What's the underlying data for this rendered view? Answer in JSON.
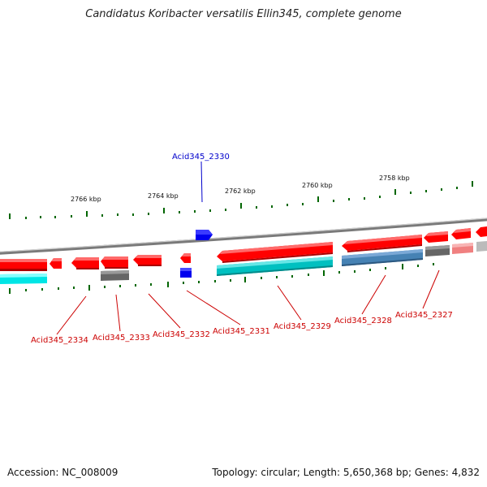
{
  "title": "Candidatus Koribacter versatilis Ellin345, complete genome",
  "footer": {
    "accession": "Accession: NC_008009",
    "summary": "Topology: circular; Length: 5,650,368 bp; Genes: 4,832"
  },
  "scale_labels": [
    "2766 kbp",
    "2764 kbp",
    "2762 kbp",
    "2760 kbp",
    "2758 kbp"
  ],
  "gene_labels": [
    {
      "text": "Acid345_2330",
      "color": "#0000cc"
    },
    {
      "text": "Acid345_2334",
      "color": "#cc0000"
    },
    {
      "text": "Acid345_2333",
      "color": "#cc0000"
    },
    {
      "text": "Acid345_2332",
      "color": "#cc0000"
    },
    {
      "text": "Acid345_2331",
      "color": "#cc0000"
    },
    {
      "text": "Acid345_2329",
      "color": "#cc0000"
    },
    {
      "text": "Acid345_2328",
      "color": "#cc0000"
    },
    {
      "text": "Acid345_2327",
      "color": "#cc0000"
    }
  ],
  "colors": {
    "gene_red": "#ff0000",
    "gene_blue": "#0000ee",
    "gene_cyan": "#00cccc",
    "gene_steelblue": "#4682b4",
    "gene_gray": "#666666",
    "gene_pink": "#f08080",
    "backbone": "#888888",
    "tick": "#006600"
  }
}
